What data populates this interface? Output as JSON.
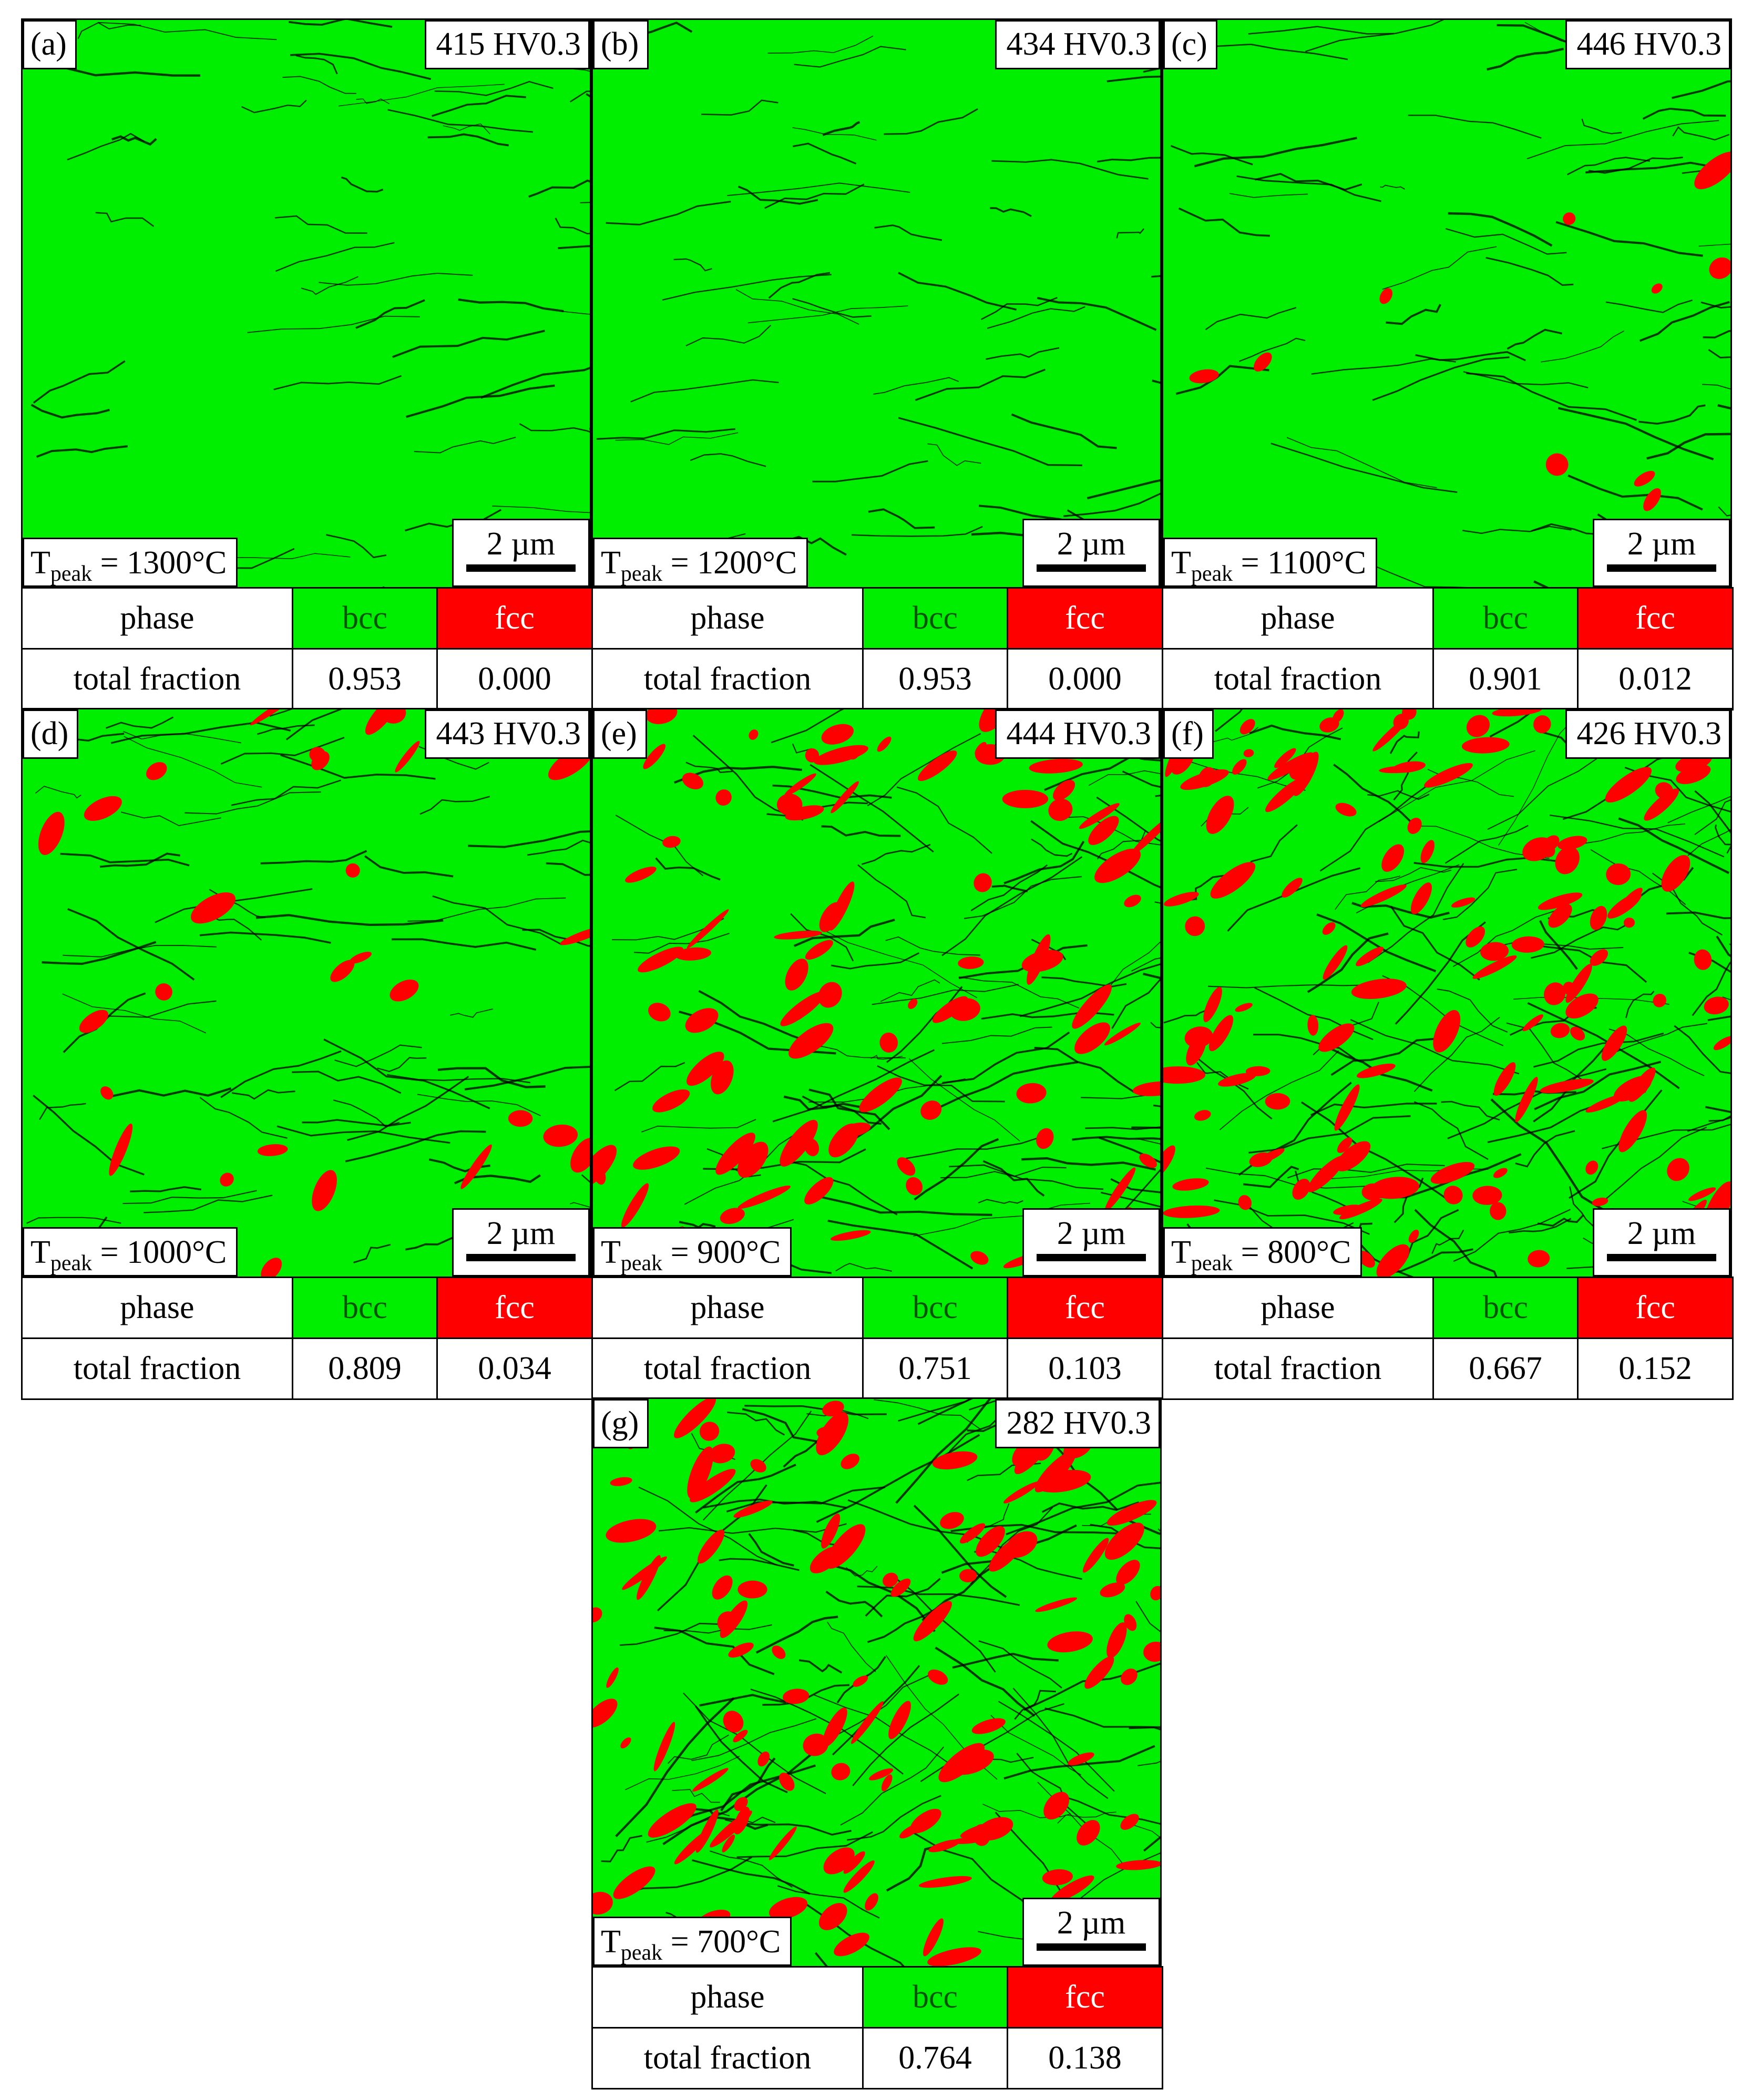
{
  "figure": {
    "panels": [
      {
        "letter": "(a)",
        "hardness": "415 HV0.3",
        "temp_value": "1300°C",
        "scale": "2 µm",
        "bcc": "0.953",
        "fcc": "0.000"
      },
      {
        "letter": "(b)",
        "hardness": "434 HV0.3",
        "temp_value": "1200°C",
        "scale": "2 µm",
        "bcc": "0.953",
        "fcc": "0.000"
      },
      {
        "letter": "(c)",
        "hardness": "446 HV0.3",
        "temp_value": "1100°C",
        "scale": "2 µm",
        "bcc": "0.901",
        "fcc": "0.012"
      },
      {
        "letter": "(d)",
        "hardness": "443 HV0.3",
        "temp_value": "1000°C",
        "scale": "2 µm",
        "bcc": "0.809",
        "fcc": "0.034"
      },
      {
        "letter": "(e)",
        "hardness": "444 HV0.3",
        "temp_value": "900°C",
        "scale": "2 µm",
        "bcc": "0.751",
        "fcc": "0.103"
      },
      {
        "letter": "(f)",
        "hardness": "426 HV0.3",
        "temp_value": "800°C",
        "scale": "2 µm",
        "bcc": "0.667",
        "fcc": "0.152"
      },
      {
        "letter": "(g)",
        "hardness": "282 HV0.3",
        "temp_value": "700°C",
        "scale": "2 µm",
        "bcc": "0.764",
        "fcc": "0.138"
      }
    ],
    "labels": {
      "t_symbol": "T",
      "t_subscript": "peak",
      "equals": " = ",
      "phase": "phase",
      "bcc": "bcc",
      "fcc": "fcc",
      "total_fraction": "total fraction"
    },
    "colors": {
      "bcc": "#00ee00",
      "fcc": "#ff0000",
      "boundary": "#000000"
    }
  }
}
